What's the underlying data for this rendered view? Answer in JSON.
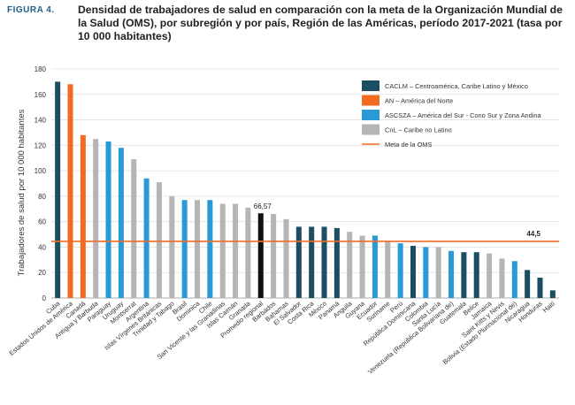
{
  "figure": {
    "label": "FIGURA 4.",
    "title": "Densidad de trabajadores de salud en comparación con la meta de la Organización Mundial de la Salud (OMS), por subregión y por país, Región de las Américas, período 2017-2021 (tasa por 10 000 habitantes)"
  },
  "colors": {
    "CACLM": "#1b4e62",
    "AN": "#f26b21",
    "ASCSZA": "#2a9ad6",
    "CnL": "#b5b5b5",
    "promedio": "#111111",
    "meta": "#f26b21"
  },
  "chart_data": {
    "type": "bar",
    "title": "",
    "xlabel": "",
    "ylabel": "Trabajadores de salud por 10 000 habitantes",
    "ylim": [
      0,
      180
    ],
    "yticks": [
      "0",
      "20",
      "40",
      "60",
      "80",
      "100",
      "120",
      "140",
      "160",
      "180"
    ],
    "grid": true,
    "legend_position": "top-right",
    "legend": [
      {
        "key": "CACLM",
        "label": "CACLM – Centroamérica, Caribe Latino y México"
      },
      {
        "key": "AN",
        "label": "AN – América del Norte"
      },
      {
        "key": "ASCSZA",
        "label": "ASCSZA – América del Sur - Cono Sur y Zona Andina"
      },
      {
        "key": "CnL",
        "label": "CnL – Caribe no Latino"
      },
      {
        "key": "meta",
        "label": "Meta de la OMS"
      }
    ],
    "reference_line": {
      "name": "Meta de la OMS",
      "value": 44.5,
      "label": "44,5"
    },
    "annotations": [
      {
        "category": "Promedio regional",
        "label": "66,57"
      }
    ],
    "categories": [
      "Cuba",
      "Estados Unidos de América",
      "Canadá",
      "Antigua y Barbuda",
      "Paraguay",
      "Uruguay",
      "Montserrat",
      "Argentina",
      "Islas Vírgenes Británicas",
      "Trinidad y Tabago",
      "Brasil",
      "Dominica",
      "Chile",
      "San Vicente y las Granadinas",
      "Islas Caimán",
      "Granada",
      "Promedio regional",
      "Barbados",
      "Bahamas",
      "El Salvador",
      "Costa Rica",
      "México",
      "Panamá",
      "Anguila",
      "Guyana",
      "Ecuador",
      "Suriname",
      "Perú",
      "República Dominicana",
      "Colombia",
      "Santa Lucía",
      "Venezuela (República Bolivariana de)",
      "Guatemala",
      "Belice",
      "Jamaica",
      "Saint Kitts y Nevis",
      "Bolivia (Estado Plurinacional de)",
      "Nicaragua",
      "Honduras",
      "Haití"
    ],
    "values": [
      170,
      168,
      128,
      125,
      123,
      118,
      109,
      94,
      91,
      80,
      77,
      77,
      77,
      74,
      74,
      71,
      66.57,
      66,
      62,
      56,
      56,
      56,
      55,
      52,
      49,
      49,
      45,
      43,
      41,
      40,
      40,
      37,
      36,
      36,
      35,
      31,
      29,
      22,
      16,
      6
    ],
    "groups": [
      "CACLM",
      "AN",
      "AN",
      "CnL",
      "ASCSZA",
      "ASCSZA",
      "CnL",
      "ASCSZA",
      "CnL",
      "CnL",
      "ASCSZA",
      "CnL",
      "ASCSZA",
      "CnL",
      "CnL",
      "CnL",
      "promedio",
      "CnL",
      "CnL",
      "CACLM",
      "CACLM",
      "CACLM",
      "CACLM",
      "CnL",
      "CnL",
      "ASCSZA",
      "CnL",
      "ASCSZA",
      "CACLM",
      "ASCSZA",
      "CnL",
      "ASCSZA",
      "CACLM",
      "CACLM",
      "CnL",
      "CnL",
      "ASCSZA",
      "CACLM",
      "CACLM",
      "CACLM"
    ]
  }
}
